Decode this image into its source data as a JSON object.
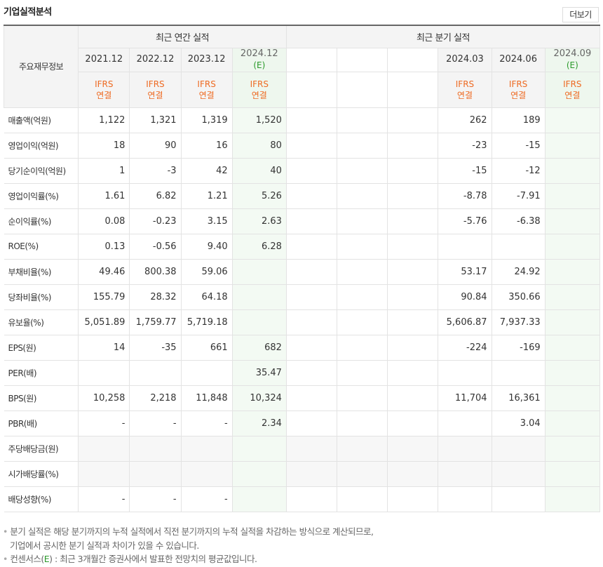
{
  "header": {
    "title": "기업실적분석",
    "more_label": "더보기"
  },
  "table": {
    "row_header_label": "주요재무정보",
    "annual_label": "최근 연간 실적",
    "quarter_label": "최근 분기 실적",
    "annual_periods": [
      "2021.12",
      "2022.12",
      "2023.12",
      "2024.12"
    ],
    "quarter_periods": [
      "2024.03",
      "2024.06",
      "2024.09"
    ],
    "estimate_mark": "(E)",
    "ifrs_line1": "IFRS",
    "ifrs_line2": "연결",
    "rows": [
      {
        "label": "매출액(억원)",
        "annual": [
          "1,122",
          "1,321",
          "1,319",
          "1,520"
        ],
        "quarter": [
          "262",
          "189",
          ""
        ]
      },
      {
        "label": "영업이익(억원)",
        "annual": [
          "18",
          "90",
          "16",
          "80"
        ],
        "quarter": [
          "-23",
          "-15",
          ""
        ]
      },
      {
        "label": "당기순이익(억원)",
        "annual": [
          "1",
          "-3",
          "42",
          "40"
        ],
        "quarter": [
          "-15",
          "-12",
          ""
        ]
      },
      {
        "label": "영업이익률(%)",
        "annual": [
          "1.61",
          "6.82",
          "1.21",
          "5.26"
        ],
        "quarter": [
          "-8.78",
          "-7.91",
          ""
        ]
      },
      {
        "label": "순이익률(%)",
        "annual": [
          "0.08",
          "-0.23",
          "3.15",
          "2.63"
        ],
        "quarter": [
          "-5.76",
          "-6.38",
          ""
        ]
      },
      {
        "label": "ROE(%)",
        "annual": [
          "0.13",
          "-0.56",
          "9.40",
          "6.28"
        ],
        "quarter": [
          "",
          "",
          ""
        ]
      },
      {
        "label": "부채비율(%)",
        "annual": [
          "49.46",
          "800.38",
          "59.06",
          ""
        ],
        "quarter": [
          "53.17",
          "24.92",
          ""
        ]
      },
      {
        "label": "당좌비율(%)",
        "annual": [
          "155.79",
          "28.32",
          "64.18",
          ""
        ],
        "quarter": [
          "90.84",
          "350.66",
          ""
        ]
      },
      {
        "label": "유보율(%)",
        "annual": [
          "5,051.89",
          "1,759.77",
          "5,719.18",
          ""
        ],
        "quarter": [
          "5,606.87",
          "7,937.33",
          ""
        ]
      },
      {
        "label": "EPS(원)",
        "annual": [
          "14",
          "-35",
          "661",
          "682"
        ],
        "quarter": [
          "-224",
          "-169",
          ""
        ]
      },
      {
        "label": "PER(배)",
        "annual": [
          "",
          "",
          "",
          "35.47"
        ],
        "quarter": [
          "",
          "",
          ""
        ]
      },
      {
        "label": "BPS(원)",
        "annual": [
          "10,258",
          "2,218",
          "11,848",
          "10,324"
        ],
        "quarter": [
          "11,704",
          "16,361",
          ""
        ]
      },
      {
        "label": "PBR(배)",
        "annual": [
          "-",
          "-",
          "-",
          "2.34"
        ],
        "quarter": [
          "",
          "3.04",
          ""
        ]
      },
      {
        "label": "주당배당금(원)",
        "annual": [
          "",
          "",
          "",
          ""
        ],
        "quarter": [
          "",
          "",
          ""
        ]
      },
      {
        "label": "시가배당률(%)",
        "annual": [
          "",
          "",
          "",
          ""
        ],
        "quarter": [
          "",
          "",
          ""
        ]
      },
      {
        "label": "배당성향(%)",
        "annual": [
          "-",
          "-",
          "-",
          ""
        ],
        "quarter": [
          "",
          "",
          ""
        ]
      }
    ]
  },
  "notes": {
    "bullet": "•",
    "line1": "분기 실적은 해당 분기까지의 누적 실적에서 직전 분기까지의 누적 실적을 차감하는 방식으로 계산되므로,",
    "line2": "기업에서 공시한 분기 실적과 차이가 있을 수 있습니다.",
    "line3_prefix": "컨센서스(",
    "line3_e": "E",
    "line3_suffix": ") : 최근 3개월간 증권사에서 발표한 전망치의 평균값입니다."
  },
  "colors": {
    "negative": "#dd0000",
    "estimate_bg": "#f3faf3",
    "ifrs": "#ee6a22",
    "estimate_mark": "#2a9a2a"
  }
}
